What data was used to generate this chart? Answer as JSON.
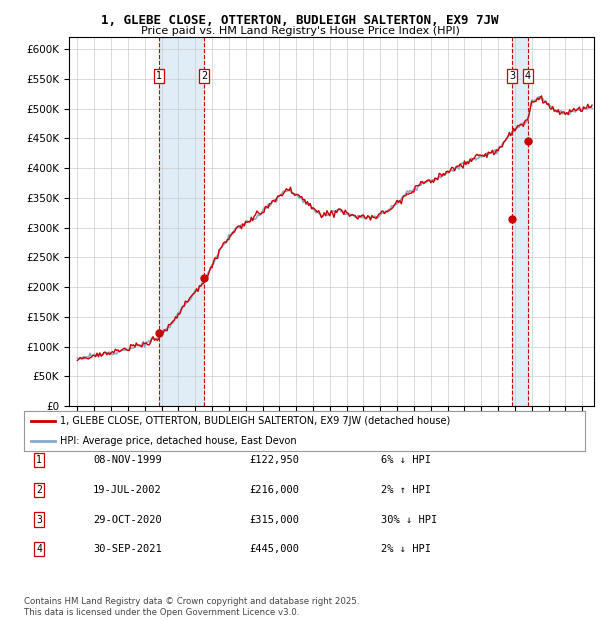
{
  "title": "1, GLEBE CLOSE, OTTERTON, BUDLEIGH SALTERTON, EX9 7JW",
  "subtitle": "Price paid vs. HM Land Registry's House Price Index (HPI)",
  "ylim": [
    0,
    620000
  ],
  "yticks": [
    0,
    50000,
    100000,
    150000,
    200000,
    250000,
    300000,
    350000,
    400000,
    450000,
    500000,
    550000,
    600000
  ],
  "xlim_start": 1994.5,
  "xlim_end": 2025.7,
  "sale_color": "#cc0000",
  "hpi_color": "#88aacc",
  "vline_color": "#cc0000",
  "shade_color": "#cce0f0",
  "transactions": [
    {
      "num": 1,
      "date": "08-NOV-1999",
      "year": 1999.86,
      "price": 122950,
      "pct": "6%",
      "dir": "↓"
    },
    {
      "num": 2,
      "date": "19-JUL-2002",
      "year": 2002.54,
      "price": 216000,
      "pct": "2%",
      "dir": "↑"
    },
    {
      "num": 3,
      "date": "29-OCT-2020",
      "year": 2020.83,
      "price": 315000,
      "pct": "30%",
      "dir": "↓"
    },
    {
      "num": 4,
      "date": "30-SEP-2021",
      "year": 2021.75,
      "price": 445000,
      "pct": "2%",
      "dir": "↓"
    }
  ],
  "legend_label_red": "1, GLEBE CLOSE, OTTERTON, BUDLEIGH SALTERTON, EX9 7JW (detached house)",
  "legend_label_blue": "HPI: Average price, detached house, East Devon",
  "footer": "Contains HM Land Registry data © Crown copyright and database right 2025.\nThis data is licensed under the Open Government Licence v3.0.",
  "background_color": "#ffffff",
  "grid_color": "#cccccc"
}
